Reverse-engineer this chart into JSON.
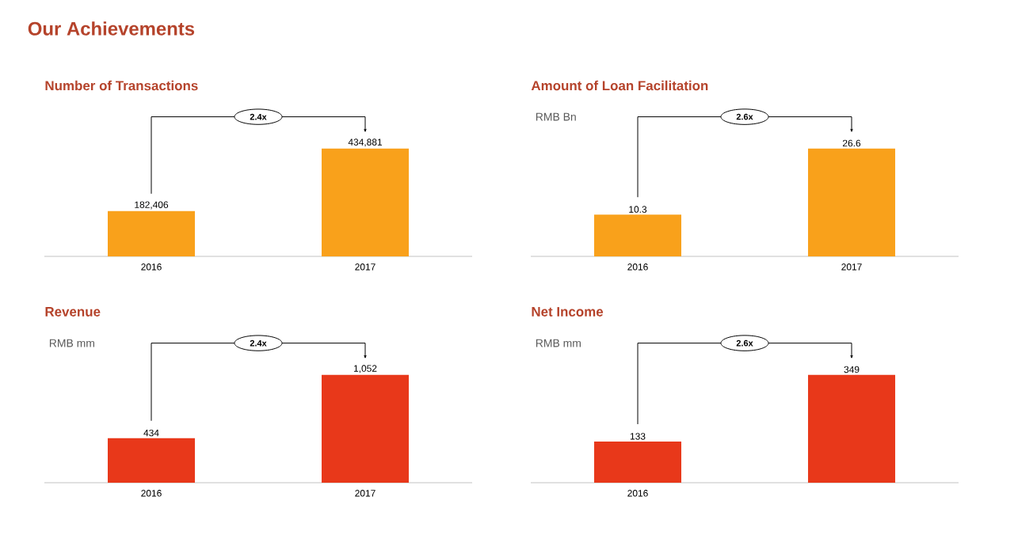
{
  "chart_data": [
    {
      "type": "bar",
      "title": "Number of Transactions",
      "categories": [
        "2016",
        "2017"
      ],
      "values": [
        182406,
        434881
      ],
      "value_labels": [
        "182,406",
        "434,881"
      ],
      "color": "#f9a11b",
      "annotations": [
        "Our Achievements",
        "2.4x"
      ]
    },
    {
      "type": "bar",
      "title": "Amount of Loan Facilitation",
      "subtitle": "RMB Bn",
      "categories": [
        "2016",
        "2017"
      ],
      "values": [
        10.3,
        26.6
      ],
      "value_labels": [
        "10.3",
        "26.6"
      ],
      "color": "#f9a11b",
      "annotations": [
        "2.6x"
      ]
    },
    {
      "type": "bar",
      "title": "Revenue",
      "subtitle": "RMB mm",
      "categories": [
        "2016",
        "2017"
      ],
      "values": [
        434,
        1052
      ],
      "value_labels": [
        "434",
        "1,052"
      ],
      "color": "#e8381a",
      "annotations": [
        "2.4x"
      ]
    },
    {
      "type": "bar",
      "title": "Net Income",
      "subtitle": "RMB mm",
      "categories": [
        "2016",
        null
      ],
      "values": [
        133,
        349
      ],
      "value_labels": [
        "133",
        "349"
      ],
      "color": "#e8381a",
      "annotations": [
        "2.6x"
      ]
    }
  ]
}
